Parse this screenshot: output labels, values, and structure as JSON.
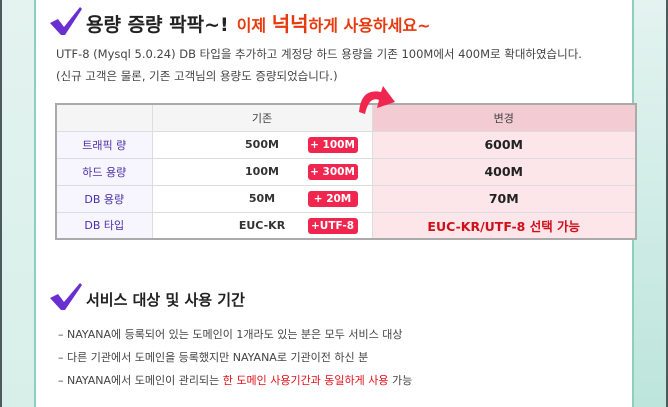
{
  "section1": {
    "title": "용량 증량 팍팍~!",
    "subtitle_a": "이제 ",
    "subtitle_b": "넉넉",
    "subtitle_c": "하게 사용하세요~",
    "line1": "UTF-8 (Mysql 5.0.24) DB 타입을 추가하고 계정당 하드 용량을 기존 100M에서 400M로 확대하였습니다.",
    "line2": "(신규 고객은 물론, 기존 고객님의 용량도 증량되었습니다.)"
  },
  "table": {
    "headers": [
      "",
      "기존",
      "변경"
    ],
    "rows": [
      {
        "label": "트래픽 량",
        "old": "500M",
        "badge": "+ 100M",
        "new": "600M"
      },
      {
        "label": "하드 용량",
        "old": "100M",
        "badge": "+ 300M",
        "new": "400M"
      },
      {
        "label": "DB 용량",
        "old": "50M",
        "badge": "+ 20M",
        "new": "70M"
      },
      {
        "label": "DB 타입",
        "old": "EUC-KR",
        "badge": "+UTF-8",
        "new": "EUC-KR/UTF-8 선택 가능"
      }
    ]
  },
  "section2": {
    "title": "서비스 대상 및 사용 기간",
    "items": [
      {
        "text": "– NAYANA에 등록되어 있는 도메인이 1개라도 있는 분은 모두 서비스 대상"
      },
      {
        "text": "– 다른 기관에서 도메인을 등록했지만 NAYANA로 기관이전 하신 분"
      },
      {
        "text": "– NAYANA에서 도메인이 관리되는 ",
        "highlight": "한 도메인 사용기간과 동일하게 사용",
        "tail": " 가능"
      }
    ]
  },
  "colors": {
    "accent": "#f0264e",
    "check": "#6a2fd0",
    "frame": "#8ccfbf"
  }
}
